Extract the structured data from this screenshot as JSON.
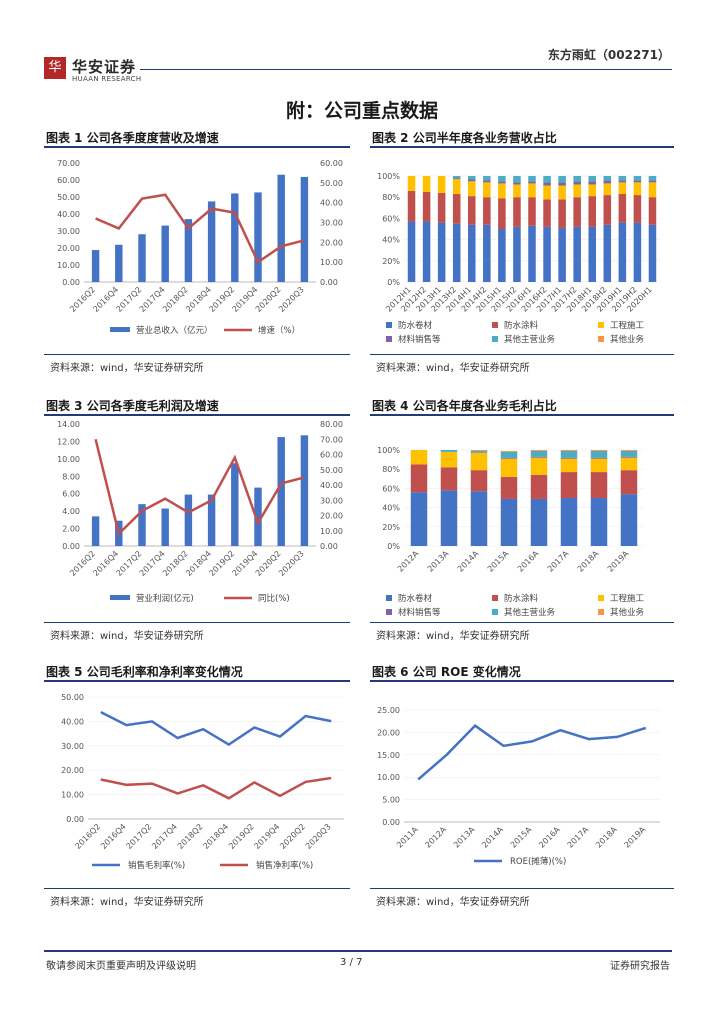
{
  "header": {
    "logo_mark": "华",
    "logo_text": "华安证券",
    "logo_sub": "HUAAN RESEARCH",
    "company": "东方雨虹（002271）"
  },
  "page_title": "附：公司重点数据",
  "source_text": "资料来源：wind，华安证券研究所",
  "footer": {
    "left": "敬请参阅末页重要声明及评级说明",
    "page": "3 / 7",
    "right": "证券研究报告"
  },
  "colors": {
    "blue": "#4472c4",
    "red": "#c0504d",
    "gold": "#ffc000",
    "purple": "#8064a2",
    "teal": "#4bacc6",
    "orange": "#f79646",
    "navy": "#1f3c78"
  },
  "chart_data": [
    {
      "id": "fig1",
      "type": "bar+line",
      "title": "图表 1 公司各季度度营收及增速",
      "categories": [
        "2016Q2",
        "2016Q4",
        "2017Q2",
        "2017Q4",
        "2018Q2",
        "2018Q4",
        "2019Q2",
        "2019Q4",
        "2020Q2",
        "2020Q3"
      ],
      "ylim": [
        0,
        70
      ],
      "y2lim": [
        0,
        60
      ],
      "yticks": [
        "0.00",
        "10.00",
        "20.00",
        "30.00",
        "40.00",
        "50.00",
        "60.00",
        "70.00"
      ],
      "y2ticks": [
        "0.00",
        "10.00",
        "20.00",
        "30.00",
        "40.00",
        "50.00",
        "60.00"
      ],
      "series": [
        {
          "name": "营业总收入（亿元）",
          "kind": "bar",
          "axis": "left",
          "values": [
            18.8,
            21.9,
            28.1,
            33.2,
            37.0,
            47.4,
            52.1,
            52.7,
            63.1,
            61.8
          ]
        },
        {
          "name": "增速（%）",
          "kind": "line",
          "axis": "right",
          "values": [
            32.0,
            27.0,
            42.0,
            44.0,
            27.0,
            37.0,
            35.0,
            10.0,
            18.0,
            21.0
          ]
        }
      ]
    },
    {
      "id": "fig2",
      "type": "stacked-bar",
      "title": "图表 2 公司半年度各业务营收占比",
      "categories": [
        "2012H1",
        "2012H2",
        "2013H1",
        "2013H2",
        "2014H1",
        "2014H2",
        "2015H1",
        "2015H2",
        "2016H1",
        "2016H2",
        "2017H1",
        "2017H2",
        "2018H1",
        "2018H2",
        "2019H1",
        "2019H2",
        "2020H1"
      ],
      "ylim": [
        0,
        100
      ],
      "yticks": [
        "0%",
        "20%",
        "40%",
        "60%",
        "80%",
        "100%"
      ],
      "series": [
        {
          "name": "防水卷材",
          "values": [
            57,
            57,
            56,
            55,
            54,
            54,
            50,
            52,
            53,
            52,
            51,
            52,
            52,
            54,
            56,
            56,
            54
          ]
        },
        {
          "name": "防水涂料",
          "values": [
            29,
            28,
            28,
            28,
            27,
            26,
            29,
            28,
            27,
            26,
            27,
            28,
            29,
            28,
            27,
            26,
            26
          ]
        },
        {
          "name": "工程施工",
          "values": [
            14,
            15,
            16,
            14,
            14,
            14,
            14,
            12,
            13,
            13,
            13,
            12,
            11,
            11,
            11,
            12,
            14
          ]
        },
        {
          "name": "材料销售等",
          "values": [
            0,
            0,
            0,
            1,
            2,
            2,
            2,
            2,
            2,
            3,
            3,
            3,
            3,
            3,
            2,
            2,
            2
          ]
        },
        {
          "name": "其他主营业务",
          "values": [
            0,
            0,
            0,
            2,
            3,
            4,
            5,
            6,
            5,
            6,
            6,
            5,
            5,
            4,
            4,
            4,
            4
          ]
        },
        {
          "name": "其他业务",
          "values": [
            0,
            0,
            0,
            0,
            0,
            0,
            0,
            0,
            0,
            0,
            0,
            0,
            0,
            0,
            0,
            0,
            0
          ]
        }
      ]
    },
    {
      "id": "fig3",
      "type": "bar+line",
      "title": "图表 3 公司各季度毛利润及增速",
      "categories": [
        "2016Q2",
        "2016Q4",
        "2017Q2",
        "2017Q4",
        "2018Q2",
        "2018Q4",
        "2019Q2",
        "2019Q4",
        "2020Q2",
        "2020Q3"
      ],
      "ylim": [
        0,
        14
      ],
      "y2lim": [
        0,
        80
      ],
      "yticks": [
        "0.00",
        "2.00",
        "4.00",
        "6.00",
        "8.00",
        "10.00",
        "12.00",
        "14.00"
      ],
      "y2ticks": [
        "0.00",
        "10.00",
        "20.00",
        "30.00",
        "40.00",
        "50.00",
        "60.00",
        "70.00",
        "80.00"
      ],
      "series": [
        {
          "name": "营业利润(亿元)",
          "kind": "bar",
          "axis": "left",
          "values": [
            3.4,
            2.9,
            4.8,
            4.3,
            5.9,
            5.9,
            9.5,
            6.7,
            12.5,
            12.7
          ]
        },
        {
          "name": "同比(%)",
          "kind": "line",
          "axis": "right",
          "values": [
            70.0,
            8.0,
            23.0,
            31.0,
            22.0,
            30.0,
            58.0,
            15.0,
            41.0,
            45.0
          ]
        }
      ]
    },
    {
      "id": "fig4",
      "type": "stacked-bar",
      "title": "图表 4 公司各年度各业务毛利占比",
      "categories": [
        "2012A",
        "2013A",
        "2014A",
        "2015A",
        "2016A",
        "2017A",
        "2018A",
        "2019A"
      ],
      "ylim": [
        0,
        100
      ],
      "yticks": [
        "0%",
        "20%",
        "40%",
        "60%",
        "80%",
        "100%"
      ],
      "series": [
        {
          "name": "防水卷材",
          "values": [
            56,
            58,
            57,
            49,
            49,
            50,
            50,
            54
          ]
        },
        {
          "name": "防水涂料",
          "values": [
            29,
            24,
            22,
            23,
            25,
            27,
            27,
            25
          ]
        },
        {
          "name": "工程施工",
          "values": [
            15,
            16,
            18,
            19,
            18,
            14,
            14,
            13
          ]
        },
        {
          "name": "材料销售等",
          "values": [
            0,
            0,
            0,
            1,
            1,
            1,
            1,
            1
          ]
        },
        {
          "name": "其他主营业务",
          "values": [
            0,
            2,
            2,
            6,
            6,
            7,
            7,
            6
          ]
        },
        {
          "name": "其他业务",
          "values": [
            0,
            0,
            1,
            1,
            1,
            1,
            1,
            1
          ]
        }
      ]
    },
    {
      "id": "fig5",
      "type": "line",
      "title": "图表 5 公司毛利率和净利率变化情况",
      "categories": [
        "2016Q2",
        "2016Q4",
        "2017Q2",
        "2017Q4",
        "2018Q2",
        "2018Q4",
        "2019Q2",
        "2019Q4",
        "2020Q2",
        "2020Q3"
      ],
      "ylim": [
        0,
        50
      ],
      "yticks": [
        "0.00",
        "10.00",
        "20.00",
        "30.00",
        "40.00",
        "50.00"
      ],
      "series": [
        {
          "name": "销售毛利率(%)",
          "values": [
            43.8,
            38.5,
            40.0,
            33.2,
            36.8,
            30.5,
            37.5,
            33.8,
            42.2,
            40.1
          ]
        },
        {
          "name": "销售净利率(%)",
          "values": [
            16.2,
            14.0,
            14.5,
            10.5,
            13.8,
            8.5,
            15.0,
            9.5,
            15.2,
            16.8
          ]
        }
      ]
    },
    {
      "id": "fig6",
      "type": "line",
      "title": "图表 6 公司 ROE 变化情况",
      "categories": [
        "2011A",
        "2012A",
        "2013A",
        "2014A",
        "2015A",
        "2016A",
        "2017A",
        "2018A",
        "2019A"
      ],
      "ylim": [
        0,
        25
      ],
      "yticks": [
        "0.00",
        "5.00",
        "10.00",
        "15.00",
        "20.00",
        "25.00"
      ],
      "series": [
        {
          "name": "ROE(摊薄)(%)",
          "values": [
            9.5,
            15.0,
            21.5,
            17.0,
            18.0,
            20.5,
            18.5,
            19.0,
            21.0
          ]
        }
      ]
    }
  ]
}
